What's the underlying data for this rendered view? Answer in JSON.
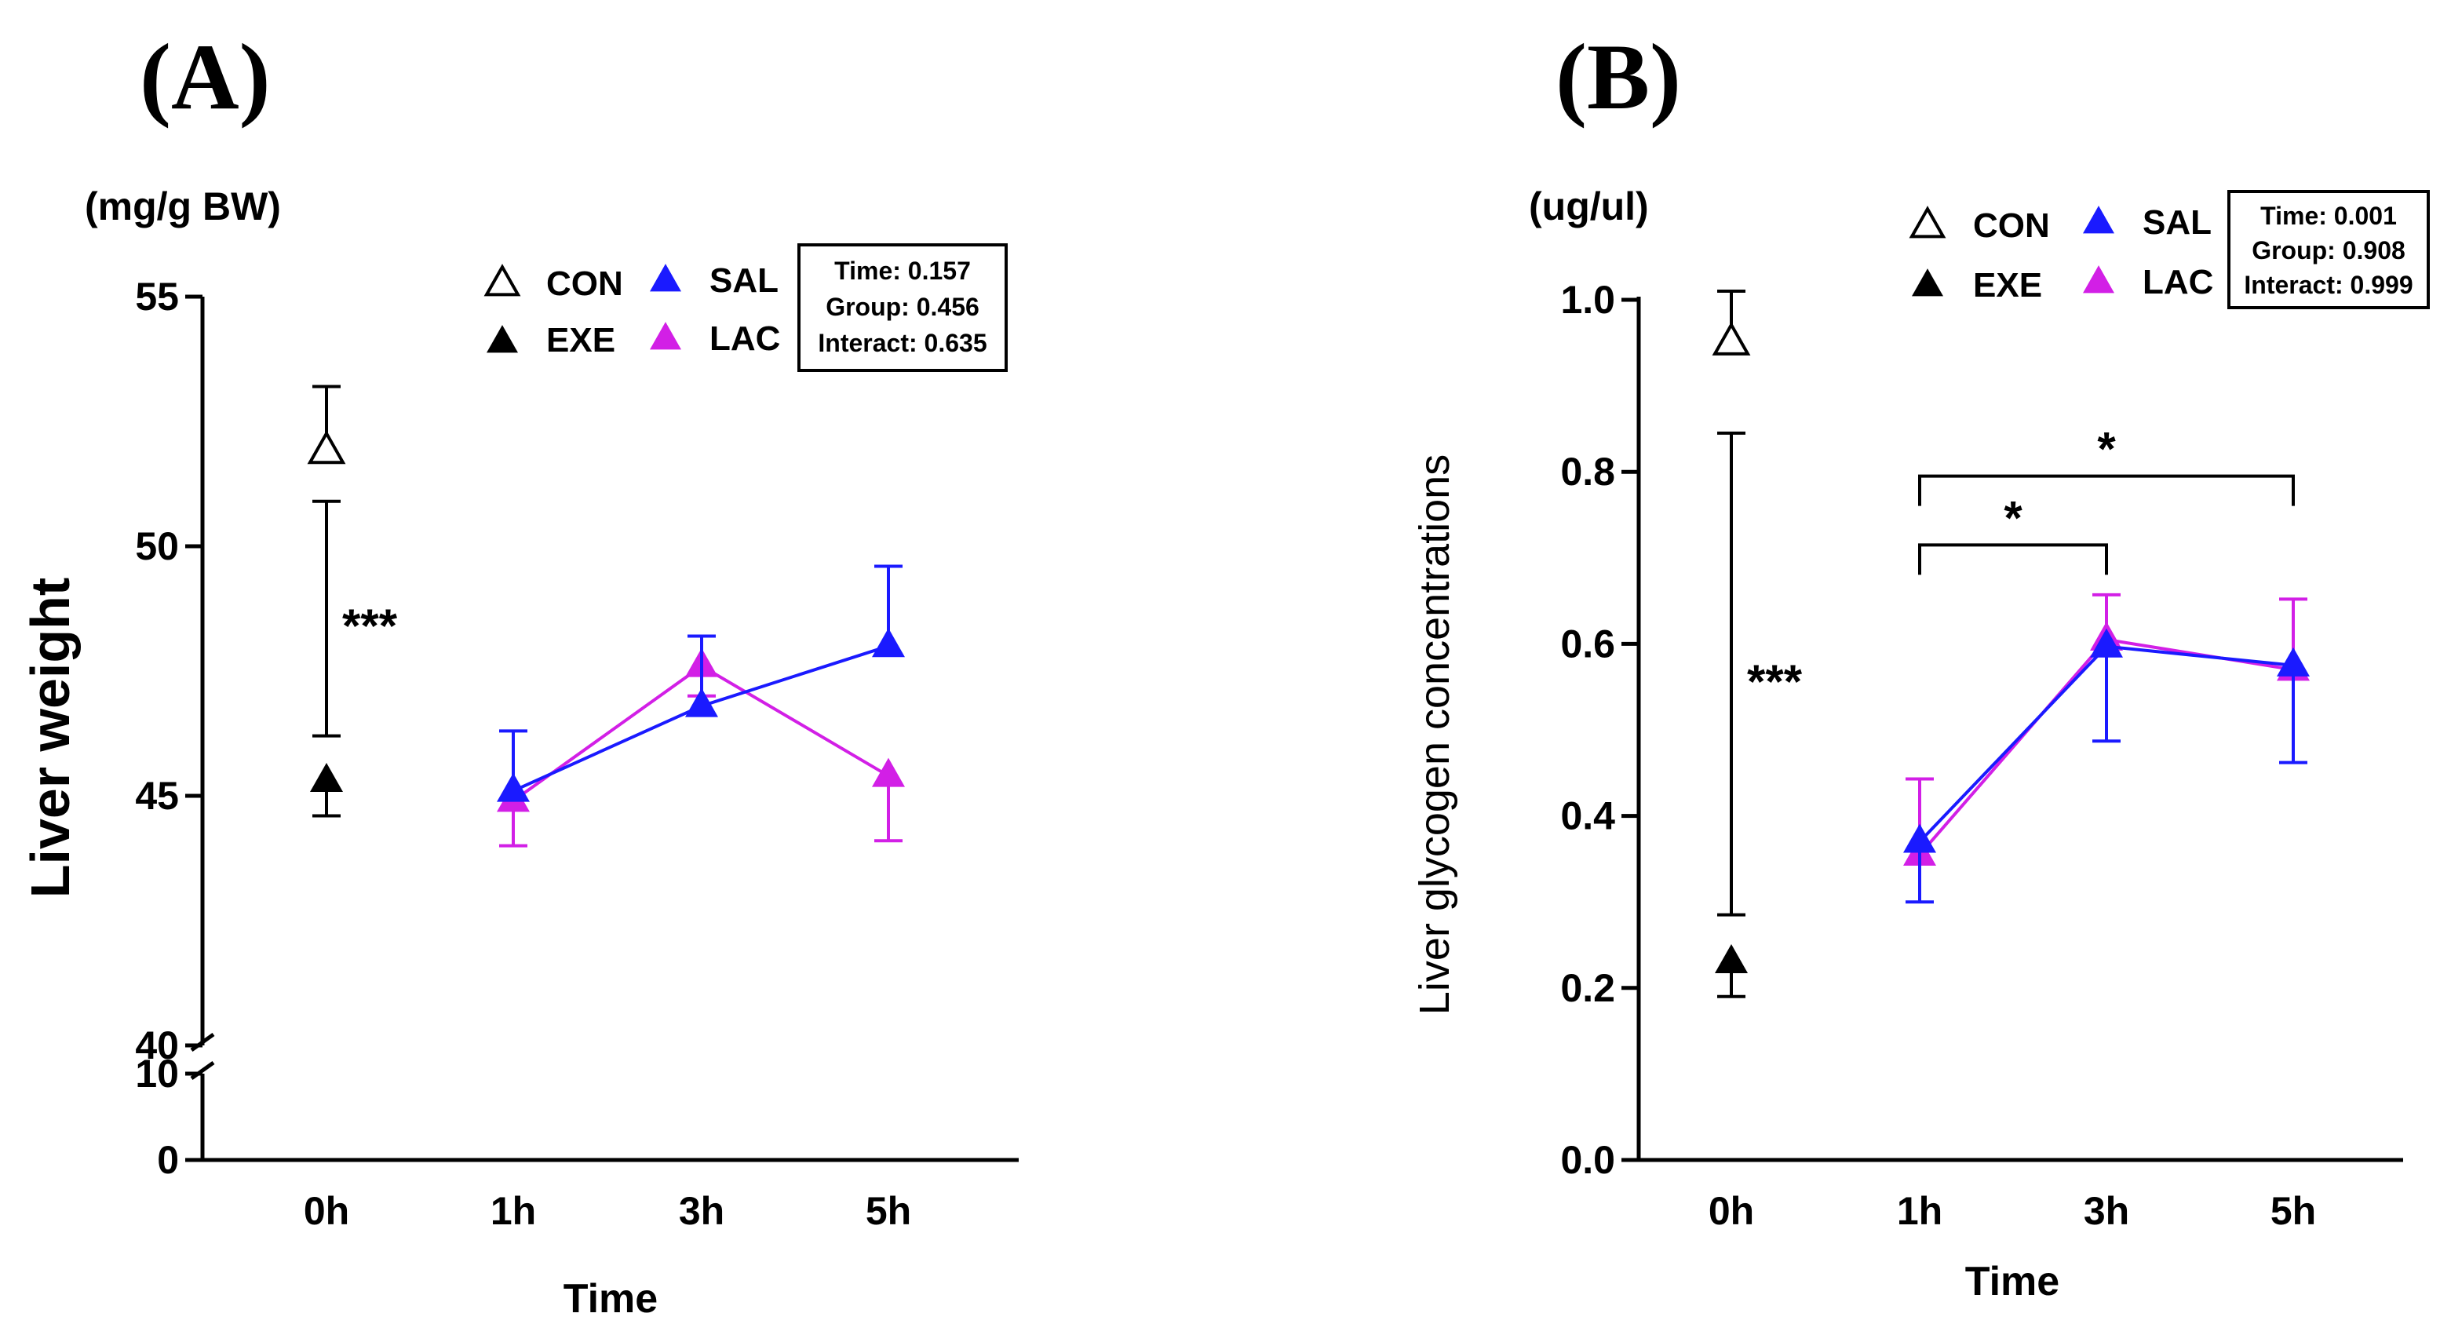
{
  "colors": {
    "con": "#000000",
    "exe": "#000000",
    "sal": "#1a1aff",
    "lac": "#d21fe6",
    "axis": "#000000"
  },
  "chart_data": [
    {
      "panel": "(A)",
      "type": "line",
      "unit": "(mg/g BW)",
      "ylabel": "Liver weight",
      "xlabel": "Time",
      "categories": [
        "0h",
        "1h",
        "3h",
        "5h"
      ],
      "axis_break": true,
      "y_lower_segment": {
        "range": [
          0,
          10
        ],
        "ticks": [
          "0",
          "10"
        ]
      },
      "y_upper_segment": {
        "range": [
          40,
          55
        ],
        "ticks": [
          "40",
          "45",
          "50",
          "55"
        ]
      },
      "legend": {
        "con": "CON",
        "exe": "EXE",
        "sal": "SAL",
        "lac": "LAC"
      },
      "stats": [
        "Time: 0.157",
        "Group: 0.456",
        "Interact: 0.635"
      ],
      "baseline": {
        "con": {
          "x": "0h",
          "value": 51.9,
          "err": 1.3
        },
        "exe": {
          "x": "0h",
          "value": 45.3,
          "err": 0.7
        },
        "significance": {
          "label": "***",
          "bar": [
            46.2,
            50.9
          ]
        }
      },
      "series": [
        {
          "name": "SAL",
          "key": "sal",
          "x": [
            "1h",
            "3h",
            "5h"
          ],
          "values": [
            45.1,
            46.8,
            48.0
          ],
          "err": [
            1.2,
            1.4,
            1.6
          ]
        },
        {
          "name": "LAC",
          "key": "lac",
          "x": [
            "1h",
            "3h",
            "5h"
          ],
          "values": [
            44.9,
            47.6,
            45.4
          ],
          "err": [
            0.9,
            0.6,
            1.3
          ]
        }
      ],
      "brackets": []
    },
    {
      "panel": "(B)",
      "type": "line",
      "unit": "(ug/ul)",
      "ylabel": "Liver glycogen concentrations",
      "xlabel": "Time",
      "categories": [
        "0h",
        "1h",
        "3h",
        "5h"
      ],
      "axis_break": false,
      "ylim": [
        0,
        1
      ],
      "yticks": [
        "0.0",
        "0.2",
        "0.4",
        "0.6",
        "0.8",
        "1.0"
      ],
      "legend": {
        "con": "CON",
        "exe": "EXE",
        "sal": "SAL",
        "lac": "LAC"
      },
      "stats": [
        "Time: 0.001",
        "Group: 0.908",
        "Interact: 0.999"
      ],
      "baseline": {
        "con": {
          "x": "0h",
          "value": 0.95,
          "err": 0.06
        },
        "exe": {
          "x": "0h",
          "value": 0.23,
          "err": 0.04
        },
        "significance": {
          "label": "***",
          "bar": [
            0.285,
            0.845
          ]
        }
      },
      "series": [
        {
          "name": "SAL",
          "key": "sal",
          "x": [
            "1h",
            "3h",
            "5h"
          ],
          "values": [
            0.37,
            0.597,
            0.575
          ],
          "err": [
            0.07,
            0.11,
            0.113
          ]
        },
        {
          "name": "LAC",
          "key": "lac",
          "x": [
            "1h",
            "3h",
            "5h"
          ],
          "values": [
            0.355,
            0.605,
            0.57
          ],
          "err": [
            0.088,
            0.052,
            0.082
          ]
        }
      ],
      "brackets": [
        {
          "from": "1h",
          "to": "3h",
          "y": 0.715,
          "label": "*"
        },
        {
          "from": "1h",
          "to": "5h",
          "y": 0.795,
          "label": "*"
        }
      ]
    }
  ]
}
